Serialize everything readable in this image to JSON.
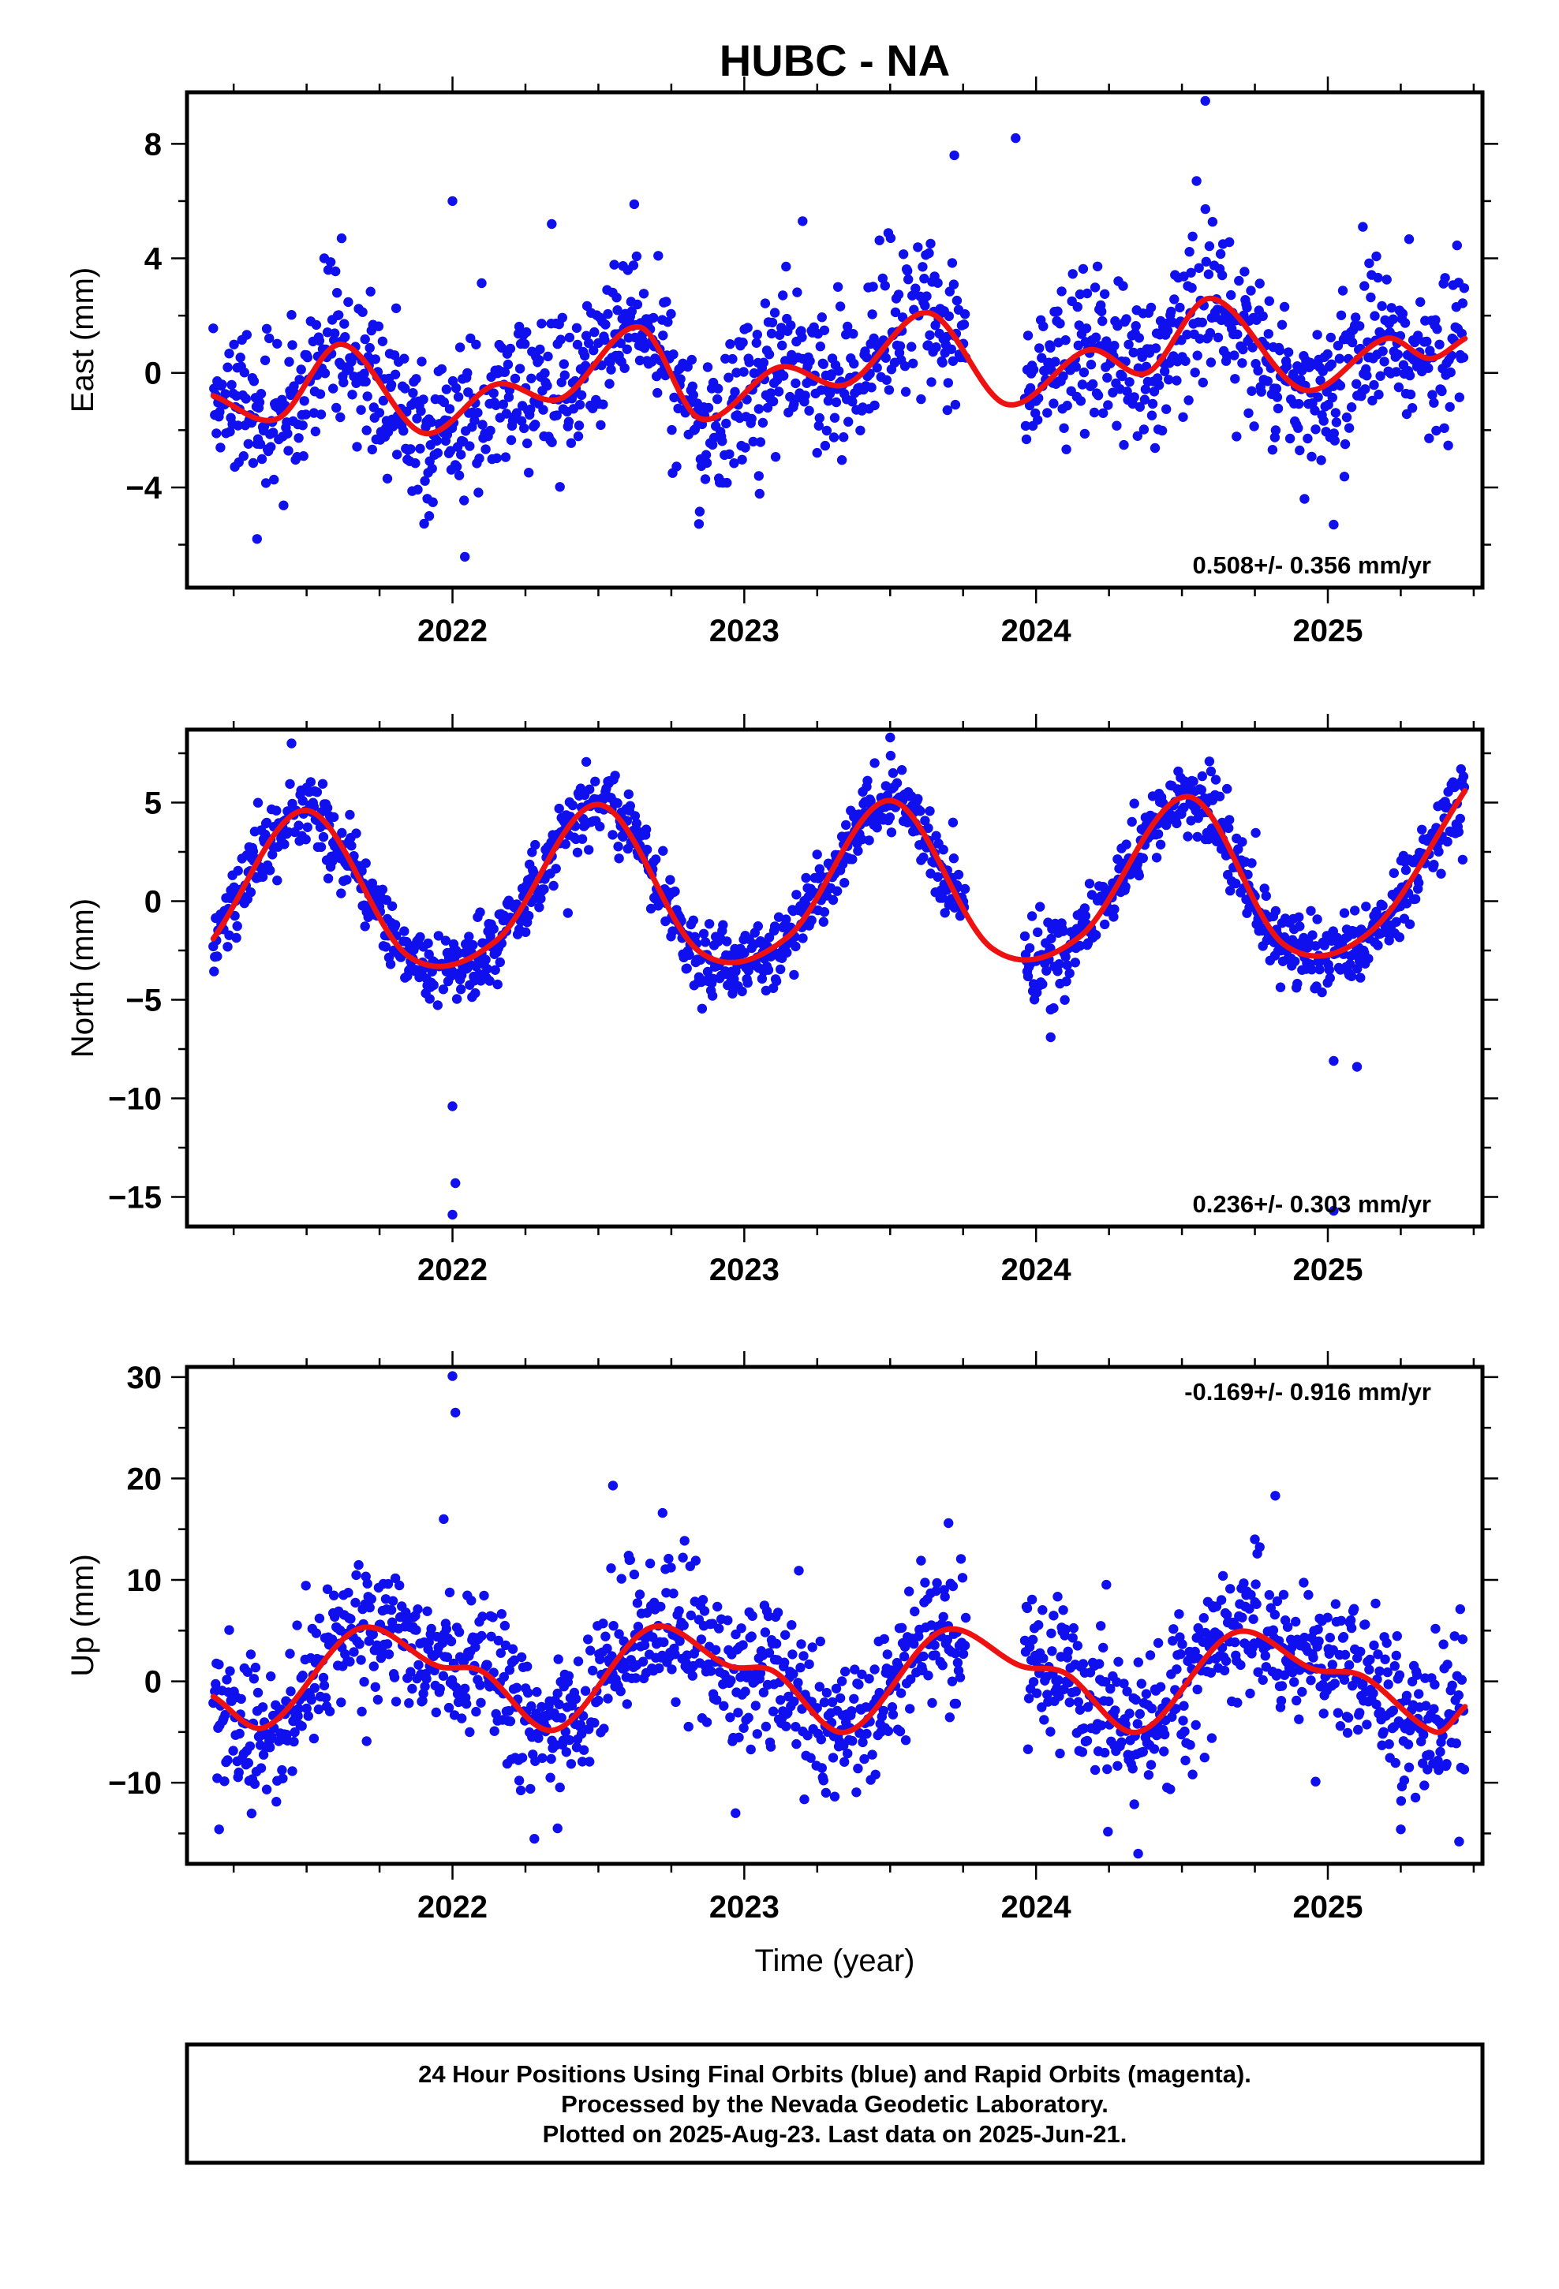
{
  "title": "HUBC - NA",
  "footer": {
    "lines": [
      "24 Hour Positions Using Final Orbits (blue) and Rapid Orbits (magenta).",
      "Processed by the Nevada Geodetic Laboratory.",
      "Plotted on 2025-Aug-23. Last data on 2025-Jun-21."
    ]
  },
  "colors": {
    "points": "#1010ee",
    "trend": "#ee1111",
    "frame": "#000000"
  },
  "chart_data": [
    {
      "type": "scatter",
      "id": "east",
      "ylabel": "East (mm)",
      "xlabel": "",
      "xlim": [
        2021.09,
        2025.53
      ],
      "ylim": [
        -7.5,
        9.8
      ],
      "xticks": [
        2022,
        2023,
        2024,
        2025
      ],
      "yticks": [
        -4,
        0,
        4,
        8
      ],
      "rate_text": "0.508+/- 0.356 mm/yr",
      "rate_position": "bottom-right",
      "data_start": 2021.18,
      "data_end": 2025.47,
      "series": [
        {
          "name": "",
          "style": "points",
          "mean_trend": [
            [
              2021.18,
              -0.8
            ],
            [
              2021.4,
              -1.6
            ],
            [
              2021.62,
              1.0
            ],
            [
              2021.9,
              -2.1
            ],
            [
              2022.15,
              -0.4
            ],
            [
              2022.37,
              -0.9
            ],
            [
              2022.64,
              1.6
            ],
            [
              2022.85,
              -1.6
            ],
            [
              2023.12,
              0.2
            ],
            [
              2023.35,
              -0.4
            ],
            [
              2023.63,
              2.1
            ],
            [
              2023.9,
              -1.1
            ],
            [
              2024.18,
              0.8
            ],
            [
              2024.38,
              0.0
            ],
            [
              2024.6,
              2.6
            ],
            [
              2024.92,
              -0.6
            ],
            [
              2025.2,
              1.2
            ],
            [
              2025.35,
              0.5
            ],
            [
              2025.47,
              1.2
            ]
          ],
          "scatter_sd": 1.3,
          "outliers": [
            [
              2024.58,
              9.5
            ],
            [
              2023.93,
              8.2
            ],
            [
              2023.72,
              7.6
            ],
            [
              2022.0,
              6.0
            ],
            [
              2025.12,
              5.1
            ],
            [
              2021.62,
              4.7
            ],
            [
              2023.05,
              -3.6
            ],
            [
              2021.33,
              -5.8
            ],
            [
              2021.92,
              -5.0
            ],
            [
              2024.92,
              -4.4
            ],
            [
              2025.02,
              -5.3
            ],
            [
              2024.55,
              6.7
            ],
            [
              2022.34,
              5.2
            ],
            [
              2023.2,
              5.3
            ]
          ]
        },
        {
          "name": "",
          "style": "line",
          "values": [
            [
              2021.18,
              -0.8
            ],
            [
              2021.4,
              -1.6
            ],
            [
              2021.62,
              1.0
            ],
            [
              2021.9,
              -2.1
            ],
            [
              2022.15,
              -0.4
            ],
            [
              2022.37,
              -0.9
            ],
            [
              2022.64,
              1.6
            ],
            [
              2022.85,
              -1.6
            ],
            [
              2023.12,
              0.2
            ],
            [
              2023.35,
              -0.4
            ],
            [
              2023.63,
              2.1
            ],
            [
              2023.9,
              -1.1
            ],
            [
              2024.18,
              0.8
            ],
            [
              2024.38,
              0.0
            ],
            [
              2024.6,
              2.6
            ],
            [
              2024.92,
              -0.6
            ],
            [
              2025.2,
              1.2
            ],
            [
              2025.35,
              0.5
            ],
            [
              2025.47,
              1.2
            ]
          ]
        }
      ]
    },
    {
      "type": "scatter",
      "id": "north",
      "ylabel": "North (mm)",
      "xlabel": "",
      "xlim": [
        2021.09,
        2025.53
      ],
      "ylim": [
        -16.5,
        8.7
      ],
      "xticks": [
        2022,
        2023,
        2024,
        2025
      ],
      "yticks": [
        -15,
        -10,
        -5,
        0,
        5
      ],
      "rate_text": "0.236+/- 0.303 mm/yr",
      "rate_position": "bottom-right",
      "data_start": 2021.18,
      "data_end": 2025.47,
      "series": [
        {
          "name": "",
          "style": "points",
          "mean_trend": [
            [
              2021.18,
              -1.9
            ],
            [
              2021.5,
              4.6
            ],
            [
              2021.85,
              -2.8
            ],
            [
              2022.15,
              -2.0
            ],
            [
              2022.5,
              4.9
            ],
            [
              2022.85,
              -2.6
            ],
            [
              2023.15,
              -1.8
            ],
            [
              2023.5,
              5.1
            ],
            [
              2023.85,
              -2.4
            ],
            [
              2024.15,
              -1.8
            ],
            [
              2024.52,
              5.3
            ],
            [
              2024.85,
              -2.2
            ],
            [
              2025.15,
              -1.5
            ],
            [
              2025.47,
              5.6
            ]
          ],
          "scatter_sd": 0.95,
          "outliers": [
            [
              2022.0,
              -10.4
            ],
            [
              2022.01,
              -14.3
            ],
            [
              2022.0,
              -15.9
            ],
            [
              2024.05,
              -5.5
            ],
            [
              2024.05,
              -6.9
            ],
            [
              2025.02,
              -8.1
            ],
            [
              2025.1,
              -8.4
            ],
            [
              2023.5,
              8.3
            ],
            [
              2025.02,
              -15.7
            ]
          ]
        },
        {
          "name": "",
          "style": "line",
          "values": [
            [
              2021.18,
              -1.9
            ],
            [
              2021.5,
              4.6
            ],
            [
              2021.85,
              -2.8
            ],
            [
              2022.15,
              -2.0
            ],
            [
              2022.5,
              4.9
            ],
            [
              2022.85,
              -2.6
            ],
            [
              2023.15,
              -1.8
            ],
            [
              2023.5,
              5.1
            ],
            [
              2023.85,
              -2.4
            ],
            [
              2024.15,
              -1.8
            ],
            [
              2024.52,
              5.3
            ],
            [
              2024.85,
              -2.2
            ],
            [
              2025.15,
              -1.5
            ],
            [
              2025.47,
              5.6
            ]
          ]
        }
      ]
    },
    {
      "type": "scatter",
      "id": "up",
      "ylabel": "Up (mm)",
      "xlabel": "Time (year)",
      "xlim": [
        2021.09,
        2025.53
      ],
      "ylim": [
        -18,
        31
      ],
      "xticks": [
        2022,
        2023,
        2024,
        2025
      ],
      "yticks": [
        -10,
        0,
        10,
        20,
        30
      ],
      "rate_text": "-0.169+/- 0.916 mm/yr",
      "rate_position": "top-right",
      "data_start": 2021.18,
      "data_end": 2025.47,
      "series": [
        {
          "name": "",
          "style": "points",
          "mean_trend": [
            [
              2021.18,
              -1.5
            ],
            [
              2021.36,
              -4.5
            ],
            [
              2021.68,
              5.2
            ],
            [
              2021.95,
              1.5
            ],
            [
              2022.1,
              1.0
            ],
            [
              2022.35,
              -4.8
            ],
            [
              2022.68,
              5.3
            ],
            [
              2022.95,
              1.5
            ],
            [
              2023.1,
              1.0
            ],
            [
              2023.35,
              -5.0
            ],
            [
              2023.68,
              5.0
            ],
            [
              2023.95,
              1.5
            ],
            [
              2024.1,
              0.8
            ],
            [
              2024.35,
              -5.0
            ],
            [
              2024.68,
              4.8
            ],
            [
              2024.95,
              1.2
            ],
            [
              2025.12,
              0.5
            ],
            [
              2025.37,
              -5.0
            ],
            [
              2025.47,
              -2.5
            ]
          ],
          "scatter_sd": 3.6,
          "outliers": [
            [
              2022.0,
              30.1
            ],
            [
              2022.01,
              26.5
            ],
            [
              2021.97,
              16.0
            ],
            [
              2022.55,
              19.3
            ],
            [
              2022.72,
              16.6
            ],
            [
              2024.82,
              18.3
            ],
            [
              2024.35,
              -17.0
            ],
            [
              2025.45,
              -15.8
            ],
            [
              2021.2,
              -14.6
            ],
            [
              2022.36,
              -14.5
            ],
            [
              2022.97,
              -13.0
            ],
            [
              2023.7,
              15.6
            ],
            [
              2025.25,
              -14.6
            ],
            [
              2024.75,
              14.0
            ]
          ]
        },
        {
          "name": "",
          "style": "line",
          "values": [
            [
              2021.18,
              -1.5
            ],
            [
              2021.36,
              -4.5
            ],
            [
              2021.68,
              5.2
            ],
            [
              2021.95,
              1.5
            ],
            [
              2022.1,
              1.0
            ],
            [
              2022.35,
              -4.8
            ],
            [
              2022.68,
              5.3
            ],
            [
              2022.95,
              1.5
            ],
            [
              2023.1,
              1.0
            ],
            [
              2023.35,
              -5.0
            ],
            [
              2023.68,
              5.0
            ],
            [
              2023.95,
              1.5
            ],
            [
              2024.1,
              0.8
            ],
            [
              2024.35,
              -5.0
            ],
            [
              2024.68,
              4.8
            ],
            [
              2024.95,
              1.2
            ],
            [
              2025.12,
              0.5
            ],
            [
              2025.37,
              -5.0
            ],
            [
              2025.47,
              -2.5
            ]
          ]
        }
      ]
    }
  ]
}
